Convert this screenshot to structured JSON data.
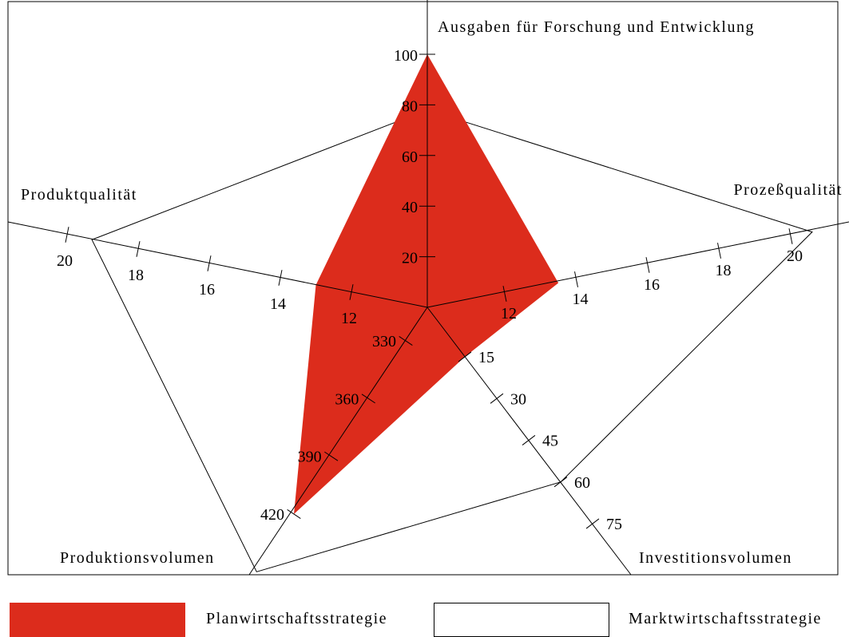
{
  "chart_data": {
    "type": "radar",
    "axes": [
      {
        "label": "Ausgaben für Forschung und Entwicklung",
        "ticks": [
          "20",
          "40",
          "60",
          "80",
          "100"
        ]
      },
      {
        "label": "Prozeßqualität",
        "ticks": [
          "12",
          "14",
          "16",
          "18",
          "20"
        ]
      },
      {
        "label": "Investitionsvolumen",
        "ticks": [
          "15",
          "30",
          "45",
          "60",
          "75"
        ]
      },
      {
        "label": "Produktionsvolumen",
        "ticks": [
          "330",
          "360",
          "390",
          "420"
        ]
      },
      {
        "label": "Produktqualität",
        "ticks": [
          "12",
          "14",
          "16",
          "18",
          "20"
        ]
      }
    ],
    "series": [
      {
        "name": "Planwirtschaftsstrategie",
        "color": "#dc2c1c",
        "values": [
          100,
          13.5,
          15,
          420,
          13
        ]
      },
      {
        "name": "Marktwirtschaftsstrategie",
        "color": "#ffffff",
        "values": [
          78,
          20.6,
          60,
          450,
          19.3
        ]
      }
    ],
    "legend_position": "bottom"
  }
}
